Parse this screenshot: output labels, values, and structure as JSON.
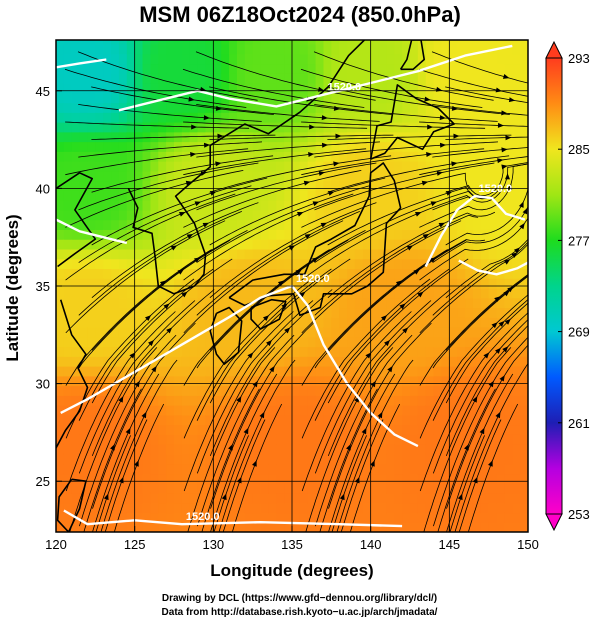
{
  "chart_data": {
    "type": "heatmap",
    "title": "MSM 06Z18Oct2024 (850.0hPa)",
    "xlabel": "Longitude (degrees)",
    "ylabel": "Latitude  (degrees)",
    "xlim": [
      120,
      150
    ],
    "ylim": [
      22.4,
      47.6
    ],
    "x_ticks": [
      120,
      125,
      130,
      135,
      140,
      145,
      150
    ],
    "y_ticks": [
      25,
      30,
      35,
      40,
      45
    ],
    "grid": true,
    "colorbar": {
      "range": [
        253,
        293
      ],
      "ticks": [
        253,
        261,
        269,
        277,
        285,
        293
      ],
      "stops": [
        {
          "value": 253,
          "color": "#ff00c8"
        },
        {
          "value": 257,
          "color": "#b400e0"
        },
        {
          "value": 261,
          "color": "#1e1eb4"
        },
        {
          "value": 265,
          "color": "#005aff"
        },
        {
          "value": 269,
          "color": "#00c8d2"
        },
        {
          "value": 273,
          "color": "#00d48c"
        },
        {
          "value": 277,
          "color": "#1edc1e"
        },
        {
          "value": 281,
          "color": "#a0e614"
        },
        {
          "value": 285,
          "color": "#f0e61e"
        },
        {
          "value": 289,
          "color": "#ff8c14"
        },
        {
          "value": 293,
          "color": "#ff3c1e"
        }
      ]
    },
    "field_samples": [
      {
        "lon": 122,
        "lat": 46,
        "value": 270
      },
      {
        "lon": 128,
        "lat": 46,
        "value": 276
      },
      {
        "lon": 134,
        "lat": 46,
        "value": 279
      },
      {
        "lon": 140,
        "lat": 46,
        "value": 282
      },
      {
        "lon": 146,
        "lat": 46,
        "value": 285
      },
      {
        "lon": 122,
        "lat": 40,
        "value": 278
      },
      {
        "lon": 130,
        "lat": 40,
        "value": 283
      },
      {
        "lon": 140,
        "lat": 40,
        "value": 286
      },
      {
        "lon": 148,
        "lat": 40,
        "value": 285
      },
      {
        "lon": 122,
        "lat": 34,
        "value": 286
      },
      {
        "lon": 132,
        "lat": 34,
        "value": 287
      },
      {
        "lon": 142,
        "lat": 34,
        "value": 288
      },
      {
        "lon": 122,
        "lat": 27,
        "value": 290
      },
      {
        "lon": 135,
        "lat": 27,
        "value": 290
      },
      {
        "lon": 146,
        "lat": 27,
        "value": 290
      }
    ],
    "contour_labels": [
      "1520.0",
      "1520.0",
      "1520.0",
      "1520.0"
    ],
    "contours": [
      {
        "label": "1520.0",
        "points": [
          [
            120.5,
            23.5
          ],
          [
            122,
            22.8
          ],
          [
            125,
            23.0
          ],
          [
            128,
            22.8
          ],
          [
            133,
            22.9
          ],
          [
            138,
            22.8
          ],
          [
            142,
            22.7
          ]
        ]
      },
      {
        "label": "1520.0",
        "points": [
          [
            120.3,
            28.5
          ],
          [
            122,
            29.2
          ],
          [
            125,
            30.6
          ],
          [
            128,
            32.0
          ],
          [
            131,
            33.4
          ],
          [
            133,
            34.4
          ],
          [
            135,
            35.0
          ],
          [
            136,
            34.0
          ],
          [
            137,
            32.0
          ],
          [
            138.5,
            30.0
          ],
          [
            140,
            28.5
          ],
          [
            141.5,
            27.4
          ],
          [
            143,
            26.8
          ]
        ]
      },
      {
        "label": "1520.0",
        "points": [
          [
            124,
            44.0
          ],
          [
            127,
            44.6
          ],
          [
            129,
            45.0
          ],
          [
            131,
            44.6
          ],
          [
            134,
            44.2
          ],
          [
            137,
            44.8
          ],
          [
            140,
            45.4
          ],
          [
            143,
            46.0
          ],
          [
            146,
            46.8
          ],
          [
            149,
            47.3
          ]
        ]
      },
      {
        "label": "1520.0",
        "points": [
          [
            143.5,
            36.0
          ],
          [
            144.5,
            37.6
          ],
          [
            145.5,
            38.9
          ],
          [
            146.6,
            39.6
          ],
          [
            147.7,
            39.5
          ],
          [
            148.6,
            38.7
          ],
          [
            149.8,
            38.4
          ]
        ]
      },
      {
        "label": "",
        "points": [
          [
            120,
            38.4
          ],
          [
            121.5,
            37.8
          ],
          [
            123,
            37.5
          ],
          [
            124.5,
            37.2
          ]
        ]
      },
      {
        "label": "",
        "points": [
          [
            120,
            46.2
          ],
          [
            121.5,
            46.4
          ],
          [
            123.2,
            46.6
          ]
        ]
      },
      {
        "label": "",
        "points": [
          [
            145.6,
            36.3
          ],
          [
            146.8,
            35.8
          ],
          [
            148.0,
            35.6
          ],
          [
            149.3,
            35.9
          ],
          [
            150,
            36.2
          ]
        ]
      }
    ],
    "coastlines": [
      {
        "name": "Kyushu",
        "points": [
          [
            130.2,
            33.6
          ],
          [
            131.0,
            33.9
          ],
          [
            131.8,
            33.2
          ],
          [
            131.6,
            31.6
          ],
          [
            130.7,
            31.0
          ],
          [
            130.2,
            31.5
          ],
          [
            129.8,
            32.7
          ],
          [
            130.2,
            33.6
          ]
        ]
      },
      {
        "name": "Shikoku",
        "points": [
          [
            132.4,
            33.9
          ],
          [
            133.7,
            34.3
          ],
          [
            134.6,
            34.2
          ],
          [
            134.2,
            33.3
          ],
          [
            133.0,
            32.8
          ],
          [
            132.4,
            33.3
          ],
          [
            132.4,
            33.9
          ]
        ]
      },
      {
        "name": "Honshu",
        "points": [
          [
            131.0,
            34.4
          ],
          [
            132.5,
            35.3
          ],
          [
            134.5,
            35.6
          ],
          [
            135.8,
            35.6
          ],
          [
            136.5,
            37.0
          ],
          [
            137.5,
            37.4
          ],
          [
            139.0,
            38.1
          ],
          [
            139.9,
            39.6
          ],
          [
            140.0,
            40.8
          ],
          [
            140.8,
            41.3
          ],
          [
            141.5,
            40.4
          ],
          [
            141.9,
            39.0
          ],
          [
            141.0,
            38.2
          ],
          [
            140.9,
            36.9
          ],
          [
            140.8,
            35.7
          ],
          [
            139.8,
            35.0
          ],
          [
            138.8,
            34.6
          ],
          [
            137.0,
            34.6
          ],
          [
            136.8,
            33.9
          ],
          [
            135.5,
            33.5
          ],
          [
            135.1,
            34.6
          ],
          [
            133.5,
            34.5
          ],
          [
            132.0,
            34.0
          ],
          [
            131.0,
            34.4
          ]
        ]
      },
      {
        "name": "Hokkaido",
        "points": [
          [
            140.0,
            41.5
          ],
          [
            140.4,
            43.2
          ],
          [
            141.3,
            43.4
          ],
          [
            141.7,
            45.3
          ],
          [
            142.9,
            44.6
          ],
          [
            144.3,
            44.1
          ],
          [
            145.3,
            43.3
          ],
          [
            144.0,
            42.9
          ],
          [
            143.3,
            42.0
          ],
          [
            141.7,
            42.6
          ],
          [
            140.9,
            41.8
          ],
          [
            140.0,
            41.5
          ]
        ]
      },
      {
        "name": "Sakhalin",
        "points": [
          [
            141.9,
            46.1
          ],
          [
            142.3,
            46.6
          ],
          [
            142.6,
            47.6
          ],
          [
            143.2,
            47.6
          ],
          [
            143.4,
            46.6
          ],
          [
            142.7,
            46.1
          ],
          [
            141.9,
            46.1
          ]
        ]
      },
      {
        "name": "Korea",
        "points": [
          [
            124.6,
            40.0
          ],
          [
            125.2,
            39.0
          ],
          [
            124.9,
            38.0
          ],
          [
            126.1,
            37.7
          ],
          [
            126.3,
            36.5
          ],
          [
            126.5,
            35.0
          ],
          [
            127.5,
            34.6
          ],
          [
            128.8,
            35.0
          ],
          [
            129.4,
            35.6
          ],
          [
            129.5,
            36.6
          ],
          [
            128.8,
            38.2
          ],
          [
            127.6,
            39.6
          ],
          [
            128.6,
            40.3
          ],
          [
            129.8,
            41.1
          ],
          [
            129.8,
            42.2
          ],
          [
            130.6,
            42.6
          ]
        ]
      },
      {
        "name": "China",
        "points": [
          [
            120.0,
            40.0
          ],
          [
            121.5,
            40.8
          ],
          [
            122.3,
            40.5
          ],
          [
            121.2,
            38.9
          ],
          [
            122.5,
            37.4
          ],
          [
            121.1,
            36.6
          ],
          [
            120.1,
            36.0
          ]
        ]
      },
      {
        "name": "ChinaSouth",
        "points": [
          [
            120.0,
            26.7
          ],
          [
            120.6,
            27.6
          ],
          [
            121.5,
            28.6
          ],
          [
            122.0,
            29.8
          ],
          [
            121.4,
            30.8
          ],
          [
            121.9,
            31.5
          ],
          [
            121.0,
            32.5
          ],
          [
            120.3,
            34.3
          ]
        ]
      },
      {
        "name": "Taiwan",
        "points": [
          [
            121.0,
            25.1
          ],
          [
            121.9,
            25.0
          ],
          [
            121.5,
            23.6
          ],
          [
            120.8,
            22.4
          ],
          [
            120.1,
            23.0
          ],
          [
            120.2,
            24.2
          ],
          [
            121.0,
            25.1
          ]
        ]
      },
      {
        "name": "Russia",
        "points": [
          [
            130.6,
            42.6
          ],
          [
            132.0,
            43.3
          ],
          [
            133.5,
            42.8
          ],
          [
            135.5,
            43.9
          ],
          [
            137.3,
            45.2
          ],
          [
            138.6,
            46.8
          ],
          [
            139.6,
            47.6
          ]
        ]
      }
    ]
  },
  "footer": {
    "credit_line1": "Drawing by DCL (https://www.gfd−dennou.org/library/dcl/)",
    "credit_line2": "Data from http://database.rish.kyoto−u.ac.jp/arch/jmadata/"
  }
}
